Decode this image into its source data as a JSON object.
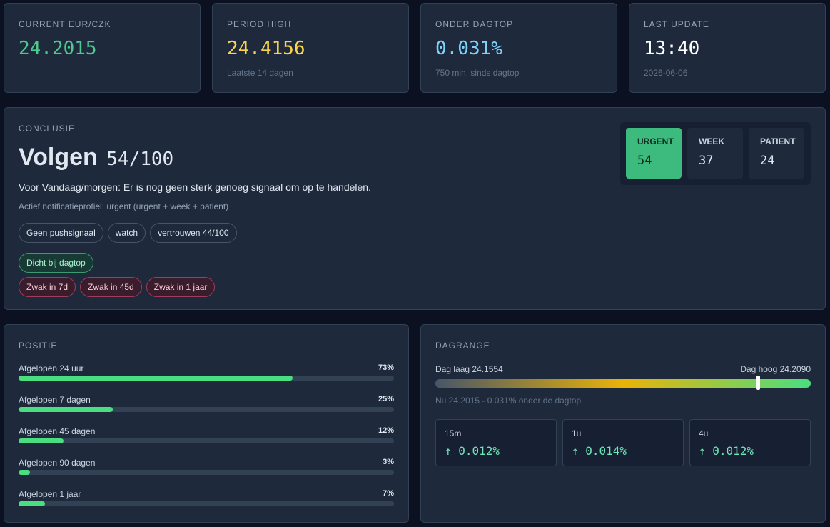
{
  "stats": [
    {
      "label": "CURRENT EUR/CZK",
      "value": "24.2015"
    },
    {
      "label": "PERIOD HIGH",
      "value": "24.4156",
      "sub": "Laatste 14 dagen"
    },
    {
      "label": "ONDER DAGTOP",
      "value": "0.031%",
      "sub": "750 min. sinds dagtop"
    },
    {
      "label": "LAST UPDATE",
      "value": "13:40",
      "sub": "2026-06-06"
    }
  ],
  "conclusie": {
    "label": "CONCLUSIE",
    "title": "Volgen",
    "score": "54/100",
    "text": "Voor Vandaag/morgen: Er is nog geen sterk genoeg signaal om op te handelen.",
    "profile": "Actief notificatieprofiel: urgent (urgent + week + patient)",
    "tags": [
      "Geen pushsignaal",
      "watch",
      "vertrouwen 44/100"
    ],
    "good_tags": [
      "Dicht bij dagtop"
    ],
    "bad_tags": [
      "Zwak in 7d",
      "Zwak in 45d",
      "Zwak in 1 jaar"
    ],
    "scores": [
      {
        "label": "URGENT",
        "value": "54"
      },
      {
        "label": "WEEK",
        "value": "37"
      },
      {
        "label": "PATIENT",
        "value": "24"
      }
    ]
  },
  "positie": {
    "label": "POSITIE",
    "rows": [
      {
        "label": "Afgelopen 24 uur",
        "value": 73,
        "value_label": "73%"
      },
      {
        "label": "Afgelopen 7 dagen",
        "value": 25,
        "value_label": "25%"
      },
      {
        "label": "Afgelopen 45 dagen",
        "value": 12,
        "value_label": "12%"
      },
      {
        "label": "Afgelopen 90 dagen",
        "value": 3,
        "value_label": "3%"
      },
      {
        "label": "Afgelopen 1 jaar",
        "value": 7,
        "value_label": "7%"
      }
    ]
  },
  "dagrange": {
    "label": "DAGRANGE",
    "low": {
      "value": 24.1554,
      "label": "Dag laag 24.1554"
    },
    "high": {
      "value": 24.209,
      "label": "Dag hoog 24.2090"
    },
    "now": {
      "value": 24.2015,
      "label": "Nu 24.2015 - 0.031% onder de dagtop"
    },
    "changes": [
      {
        "label": "15m",
        "value": "↑ 0.012%"
      },
      {
        "label": "1u",
        "value": "↑ 0.014%"
      },
      {
        "label": "4u",
        "value": "↑ 0.012%"
      }
    ]
  }
}
